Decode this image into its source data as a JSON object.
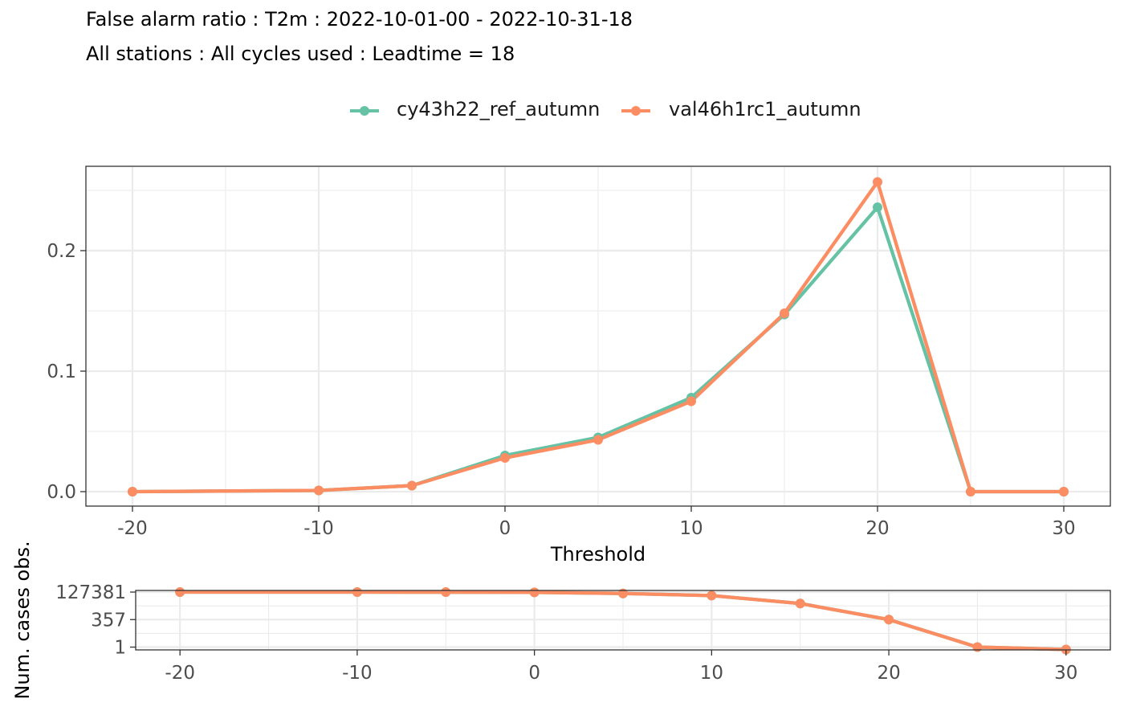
{
  "chart_data": [
    {
      "type": "line",
      "title": "False alarm ratio : T2m : 2022-10-01-00 - 2022-10-31-18",
      "subtitle": "All stations : All cycles used : Leadtime = 18",
      "xlabel": "Threshold",
      "ylabel": "",
      "x": [
        -20,
        -10,
        -5,
        0,
        5,
        10,
        15,
        20,
        25,
        30
      ],
      "xlim": [
        -22.5,
        32.5
      ],
      "ylim": [
        -0.012,
        0.27
      ],
      "x_ticks": [
        -20,
        -10,
        0,
        10,
        20,
        30
      ],
      "y_ticks": [
        0.0,
        0.1,
        0.2
      ],
      "x_tick_labels": [
        "-20",
        "-10",
        "0",
        "10",
        "20",
        "30"
      ],
      "y_tick_labels": [
        "0.0",
        "0.1",
        "0.2"
      ],
      "grid": true,
      "legend_position": "top",
      "series": [
        {
          "name": "cy43h22_ref_autumn",
          "color": "#66C2A5",
          "values": [
            0.0,
            0.001,
            0.005,
            0.03,
            0.045,
            0.078,
            0.147,
            0.236,
            0.0,
            0.0
          ]
        },
        {
          "name": "val46h1rc1_autumn",
          "color": "#FC8D62",
          "values": [
            0.0,
            0.001,
            0.005,
            0.028,
            0.043,
            0.075,
            0.148,
            0.257,
            0.0,
            0.0
          ]
        }
      ]
    },
    {
      "type": "line",
      "title": "",
      "xlabel": "",
      "ylabel": "Num. cases obs.",
      "y_scale": "log",
      "x": [
        -20,
        -10,
        -5,
        0,
        5,
        10,
        15,
        20,
        25,
        30
      ],
      "xlim": [
        -22.5,
        32.5
      ],
      "ylim": [
        0.55,
        180000
      ],
      "x_ticks": [
        -20,
        -10,
        0,
        10,
        20,
        30
      ],
      "y_ticks": [
        1,
        357,
        127381
      ],
      "x_tick_labels": [
        "-20",
        "-10",
        "0",
        "10",
        "20",
        "30"
      ],
      "y_tick_labels": [
        "1",
        "357",
        "127381"
      ],
      "grid": true,
      "series": [
        {
          "name": "cy43h22_ref_autumn",
          "color": "#66C2A5",
          "values": [
            127381,
            127000,
            126500,
            120000,
            95000,
            60000,
            11000,
            357,
            1,
            0.6
          ]
        },
        {
          "name": "val46h1rc1_autumn",
          "color": "#FC8D62",
          "values": [
            127381,
            127000,
            126500,
            120000,
            95000,
            60000,
            11000,
            357,
            1,
            0.6
          ]
        }
      ]
    }
  ]
}
